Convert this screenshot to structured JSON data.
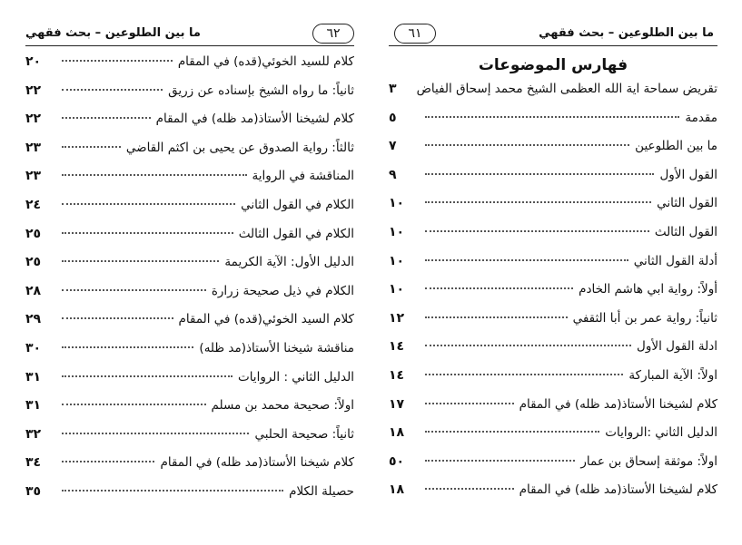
{
  "right_page": {
    "header": {
      "title": "ما بين الطلوعين – بحث فقهي",
      "page_number": "٦١"
    },
    "title": "فهارس الموضوعات",
    "entries": [
      {
        "text": "تقريض سماحة اية الله العظمى الشيخ محمد إسحاق الفياض",
        "page": "٣"
      },
      {
        "text": "مقدمة",
        "page": "٥"
      },
      {
        "text": "ما بين الطلوعين",
        "page": "٧"
      },
      {
        "text": "القول الأول",
        "page": "٩"
      },
      {
        "text": "القول الثاني",
        "page": "١٠"
      },
      {
        "text": "القول الثالث",
        "page": "١٠"
      },
      {
        "text": "أدلة القول الثاني",
        "page": "١٠"
      },
      {
        "text": "أولاً: رواية ابي هاشم الخادم",
        "page": "١٠"
      },
      {
        "text": "ثانياً: رواية عمر بن أبا الثقفي",
        "page": "١٢"
      },
      {
        "text": "ادلة القول الأول",
        "page": "١٤"
      },
      {
        "text": "اولاً: الآية المباركة",
        "page": "١٤"
      },
      {
        "text": "كلام لشيخنا الأستاذ(مد ظله) في المقام",
        "page": "١٧"
      },
      {
        "text": "الدليل الثاني :الروايات",
        "page": "١٨"
      },
      {
        "text": "اولاً: موثقة إسحاق بن عمار",
        "page": "٥٠"
      },
      {
        "text": "كلام لشيخنا الأستاذ(مد ظله) في المقام",
        "page": "١٨"
      }
    ]
  },
  "left_page": {
    "header": {
      "title": "ما بين الطلوعين – بحث فقهي",
      "page_number": "٦٢"
    },
    "entries": [
      {
        "text": "كلام للسيد الخوئي(قده) في المقام",
        "page": "٢٠"
      },
      {
        "text": "ثانياً: ما رواه الشيخ بإسناده عن زريق",
        "page": "٢٢"
      },
      {
        "text": "كلام لشيخنا الأستاذ(مد ظله) في المقام",
        "page": "٢٢"
      },
      {
        "text": "ثالثاً: رواية الصدوق عن يحيى بن اكثم القاضي",
        "page": "٢٣"
      },
      {
        "text": "المناقشة في الرواية",
        "page": "٢٣"
      },
      {
        "text": "الكلام في القول الثاني",
        "page": "٢٤"
      },
      {
        "text": "الكلام في القول الثالث",
        "page": "٢٥"
      },
      {
        "text": "الدليل الأول: الآية الكريمة",
        "page": "٢٥"
      },
      {
        "text": "الكلام في ذيل صحيحة زرارة",
        "page": "٢٨"
      },
      {
        "text": "كلام السيد الخوئي(قده) في المقام",
        "page": "٢٩"
      },
      {
        "text": "مناقشة شيخنا الأستاذ(مد ظله)",
        "page": "٣٠"
      },
      {
        "text": "الدليل الثاني : الروايات",
        "page": "٣١"
      },
      {
        "text": "اولاً: صحيحة محمد بن مسلم",
        "page": "٣١"
      },
      {
        "text": "ثانياً: صحيحة الحلبي",
        "page": "٣٢"
      },
      {
        "text": "كلام شيخنا الأستاذ(مد ظله) في المقام",
        "page": "٣٤"
      },
      {
        "text": "حصيلة الكلام",
        "page": "٣٥"
      }
    ]
  }
}
